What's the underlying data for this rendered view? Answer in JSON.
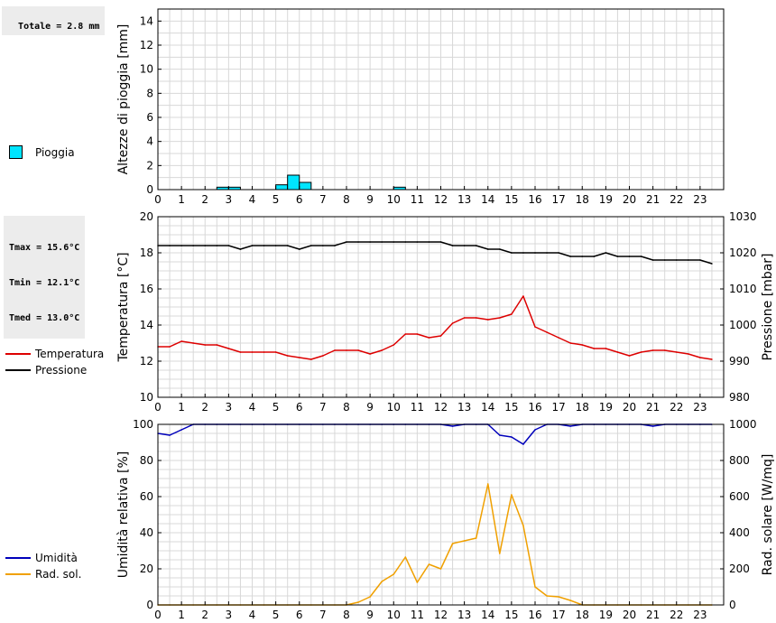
{
  "stats": {
    "total_rain": "Totale = 2.8 mm",
    "tmax": "Tmax = 15.6°C",
    "tmin": "Tmin = 12.1°C",
    "tmed": "Tmed = 13.0°C"
  },
  "legends": {
    "rain": "Pioggia",
    "temperature": "Temperatura",
    "pressure": "Pressione",
    "humidity": "Umidità",
    "solar": "Rad. sol."
  },
  "colors": {
    "rain": "#00e5ff",
    "temperature": "#dd0000",
    "pressure": "#000000",
    "humidity": "#0000bb",
    "solar": "#f0a000",
    "grid": "#d8d8d8"
  },
  "chart_data": [
    {
      "type": "bar",
      "ylabel": "Altezze di pioggia [mm]",
      "xlim": [
        0,
        24
      ],
      "ylim": [
        0,
        15
      ],
      "yticks": [
        0,
        2,
        4,
        6,
        8,
        10,
        12,
        14
      ],
      "xticks": [
        0,
        1,
        2,
        3,
        4,
        5,
        6,
        7,
        8,
        9,
        10,
        11,
        12,
        13,
        14,
        15,
        16,
        17,
        18,
        19,
        20,
        21,
        22,
        23
      ],
      "series": [
        {
          "name": "Pioggia",
          "bin_width_h": 0.5,
          "bins": [
            {
              "start": 2.5,
              "value": 0.2
            },
            {
              "start": 3.0,
              "value": 0.2
            },
            {
              "start": 5.0,
              "value": 0.4
            },
            {
              "start": 5.5,
              "value": 1.2
            },
            {
              "start": 6.0,
              "value": 0.6
            },
            {
              "start": 10.0,
              "value": 0.2
            }
          ]
        }
      ]
    },
    {
      "type": "line",
      "ylabel": "Temperatura [°C]",
      "y2label": "Pressione [mbar]",
      "xlim": [
        0,
        24
      ],
      "ylim": [
        10,
        20
      ],
      "y2lim": [
        980,
        1030
      ],
      "yticks": [
        10,
        12,
        14,
        16,
        18,
        20
      ],
      "y2ticks": [
        980,
        990,
        1000,
        1010,
        1020,
        1030
      ],
      "xticks": [
        0,
        1,
        2,
        3,
        4,
        5,
        6,
        7,
        8,
        9,
        10,
        11,
        12,
        13,
        14,
        15,
        16,
        17,
        18,
        19,
        20,
        21,
        22,
        23
      ],
      "series": [
        {
          "name": "Temperatura",
          "axis": "left",
          "x": [
            0,
            0.5,
            1,
            1.5,
            2,
            2.5,
            3,
            3.5,
            4,
            4.5,
            5,
            5.5,
            6,
            6.5,
            7,
            7.5,
            8,
            8.5,
            9,
            9.5,
            10,
            10.5,
            11,
            11.5,
            12,
            12.5,
            13,
            13.5,
            14,
            14.5,
            15,
            15.5,
            16,
            16.5,
            17,
            17.5,
            18,
            18.5,
            19,
            19.5,
            20,
            20.5,
            21,
            21.5,
            22,
            22.5,
            23,
            23.5
          ],
          "y": [
            12.8,
            12.8,
            13.1,
            13.0,
            12.9,
            12.9,
            12.7,
            12.5,
            12.5,
            12.5,
            12.5,
            12.3,
            12.2,
            12.1,
            12.3,
            12.6,
            12.6,
            12.6,
            12.4,
            12.6,
            12.9,
            13.5,
            13.5,
            13.3,
            13.4,
            14.1,
            14.4,
            14.4,
            14.3,
            14.4,
            14.6,
            15.6,
            13.9,
            13.6,
            13.3,
            13.0,
            12.9,
            12.7,
            12.7,
            12.5,
            12.3,
            12.5,
            12.6,
            12.6,
            12.5,
            12.4,
            12.2,
            12.1
          ]
        },
        {
          "name": "Pressione",
          "axis": "right",
          "x": [
            0,
            0.5,
            1,
            1.5,
            2,
            2.5,
            3,
            3.5,
            4,
            4.5,
            5,
            5.5,
            6,
            6.5,
            7,
            7.5,
            8,
            8.5,
            9,
            9.5,
            10,
            10.5,
            11,
            11.5,
            12,
            12.5,
            13,
            13.5,
            14,
            14.5,
            15,
            15.5,
            16,
            16.5,
            17,
            17.5,
            18,
            18.5,
            19,
            19.5,
            20,
            20.5,
            21,
            21.5,
            22,
            22.5,
            23,
            23.5
          ],
          "y": [
            1022,
            1022,
            1022,
            1022,
            1022,
            1022,
            1022,
            1021,
            1022,
            1022,
            1022,
            1022,
            1021,
            1022,
            1022,
            1022,
            1023,
            1023,
            1023,
            1023,
            1023,
            1023,
            1023,
            1023,
            1023,
            1022,
            1022,
            1022,
            1021,
            1021,
            1020,
            1020,
            1020,
            1020,
            1020,
            1019,
            1019,
            1019,
            1020,
            1019,
            1019,
            1019,
            1018,
            1018,
            1018,
            1018,
            1018,
            1017
          ]
        }
      ]
    },
    {
      "type": "line",
      "ylabel": "Umidità relativa [%]",
      "y2label": "Rad. solare [W/mq]",
      "xlim": [
        0,
        24
      ],
      "ylim": [
        0,
        100
      ],
      "y2lim": [
        0,
        1000
      ],
      "yticks": [
        0,
        20,
        40,
        60,
        80,
        100
      ],
      "y2ticks": [
        0,
        200,
        400,
        600,
        800,
        1000
      ],
      "xticks": [
        0,
        1,
        2,
        3,
        4,
        5,
        6,
        7,
        8,
        9,
        10,
        11,
        12,
        13,
        14,
        15,
        16,
        17,
        18,
        19,
        20,
        21,
        22,
        23
      ],
      "series": [
        {
          "name": "Umidità",
          "axis": "left",
          "x": [
            0,
            0.5,
            1,
            1.5,
            2,
            2.5,
            3,
            3.5,
            4,
            4.5,
            5,
            5.5,
            6,
            6.5,
            7,
            7.5,
            8,
            8.5,
            9,
            9.5,
            10,
            10.5,
            11,
            11.5,
            12,
            12.5,
            13,
            13.5,
            14,
            14.5,
            15,
            15.5,
            16,
            16.5,
            17,
            17.5,
            18,
            18.5,
            19,
            19.5,
            20,
            20.5,
            21,
            21.5,
            22,
            22.5,
            23,
            23.5
          ],
          "y": [
            95,
            94,
            97,
            100,
            100,
            100,
            100,
            100,
            100,
            100,
            100,
            100,
            100,
            100,
            100,
            100,
            100,
            100,
            100,
            100,
            100,
            100,
            100,
            100,
            100,
            99,
            100,
            100,
            100,
            94,
            93,
            89,
            97,
            100,
            100,
            99,
            100,
            100,
            100,
            100,
            100,
            100,
            99,
            100,
            100,
            100,
            100,
            100
          ]
        },
        {
          "name": "Rad. sol.",
          "axis": "right",
          "x": [
            0,
            0.5,
            1,
            1.5,
            2,
            2.5,
            3,
            3.5,
            4,
            4.5,
            5,
            5.5,
            6,
            6.5,
            7,
            7.5,
            8,
            8.5,
            9,
            9.5,
            10,
            10.5,
            11,
            11.5,
            12,
            12.5,
            13,
            13.5,
            14,
            14.5,
            15,
            15.5,
            16,
            16.5,
            17,
            17.5,
            18,
            18.5,
            19,
            19.5,
            20,
            20.5,
            21,
            21.5,
            22,
            22.5,
            23,
            23.5
          ],
          "y": [
            0,
            0,
            0,
            0,
            0,
            0,
            0,
            0,
            0,
            0,
            0,
            0,
            0,
            0,
            0,
            0,
            0,
            15,
            45,
            130,
            170,
            265,
            125,
            225,
            200,
            340,
            355,
            370,
            670,
            285,
            610,
            440,
            100,
            50,
            45,
            25,
            0,
            0,
            0,
            0,
            0,
            0,
            0,
            0,
            0,
            0,
            0,
            0
          ]
        }
      ]
    }
  ]
}
